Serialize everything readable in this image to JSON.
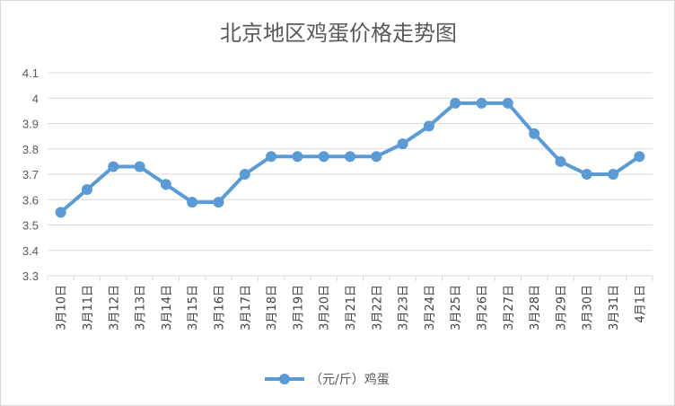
{
  "chart_data": {
    "type": "line",
    "title": "北京地区鸡蛋价格走势图",
    "xlabel": "",
    "ylabel": "",
    "categories": [
      "3月10日",
      "3月11日",
      "3月12日",
      "3月13日",
      "3月14日",
      "3月15日",
      "3月16日",
      "3月17日",
      "3月18日",
      "3月19日",
      "3月20日",
      "3月21日",
      "3月22日",
      "3月23日",
      "3月24日",
      "3月25日",
      "3月26日",
      "3月27日",
      "3月28日",
      "3月29日",
      "3月30日",
      "3月31日",
      "4月1日"
    ],
    "series": [
      {
        "name": "（元/斤）鸡蛋",
        "values": [
          3.55,
          3.64,
          3.73,
          3.73,
          3.66,
          3.59,
          3.59,
          3.7,
          3.77,
          3.77,
          3.77,
          3.77,
          3.77,
          3.82,
          3.89,
          3.98,
          3.98,
          3.98,
          3.86,
          3.75,
          3.7,
          3.7,
          3.77
        ]
      }
    ],
    "ylim": [
      3.3,
      4.1
    ],
    "yticks": [
      "3.3",
      "3.4",
      "3.5",
      "3.6",
      "3.7",
      "3.8",
      "3.9",
      "4",
      "4.1"
    ],
    "grid": true,
    "legend": "bottom",
    "colors": {
      "line": "#5b9bd5",
      "grid": "#d9d9d9",
      "text": "#595959"
    }
  }
}
